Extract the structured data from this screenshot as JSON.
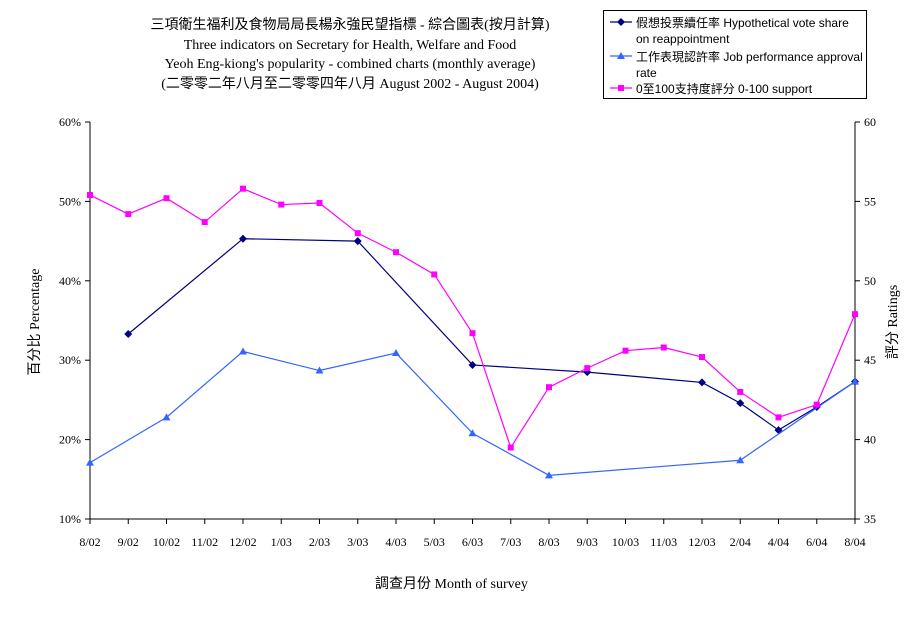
{
  "chart_data": {
    "type": "line",
    "title_lines": [
      "三項衛生福利及食物局局長楊永強民望指標 - 綜合圖表(按月計算)",
      "Three indicators on Secretary for Health, Welfare and Food",
      "Yeoh Eng-kiong's popularity - combined charts (monthly average)",
      "(二零零二年八月至二零零四年八月 August 2002 - August 2004)"
    ],
    "xlabel": "調查月份 Month of survey",
    "ylabel_left": "百分比 Percentage",
    "ylabel_right": "評分 Ratings",
    "categories": [
      "8/02",
      "9/02",
      "10/02",
      "11/02",
      "12/02",
      "1/03",
      "2/03",
      "3/03",
      "4/03",
      "5/03",
      "6/03",
      "7/03",
      "8/03",
      "9/03",
      "10/03",
      "11/03",
      "12/03",
      "2/04",
      "4/04",
      "6/04",
      "8/04"
    ],
    "y_left": {
      "min": 10,
      "max": 60,
      "step": 10,
      "tick_labels": [
        "10%",
        "20%",
        "30%",
        "40%",
        "50%",
        "60%"
      ]
    },
    "y_right": {
      "min": 35,
      "max": 60,
      "step": 5,
      "tick_labels": [
        "35",
        "40",
        "45",
        "50",
        "55",
        "60"
      ]
    },
    "series": [
      {
        "name": "假想投票續任率 Hypothetical vote share on reappointment",
        "axis": "left",
        "color": "#000080",
        "marker": "diamond",
        "values": [
          null,
          33.3,
          null,
          null,
          45.3,
          null,
          null,
          45.0,
          null,
          null,
          29.4,
          null,
          null,
          28.5,
          null,
          null,
          27.2,
          24.6,
          21.2,
          24.1,
          27.3
        ]
      },
      {
        "name": "工作表現認許率 Job performance approval rate",
        "axis": "left",
        "color": "#3366ff",
        "marker": "triangle",
        "values": [
          17.1,
          null,
          22.8,
          null,
          31.1,
          null,
          28.7,
          null,
          30.9,
          null,
          20.8,
          null,
          15.5,
          null,
          null,
          null,
          null,
          17.4,
          null,
          null,
          27.3
        ]
      },
      {
        "name": "0至100支持度評分 0-100 support",
        "axis": "right",
        "color": "#ff00ff",
        "marker": "square",
        "values": [
          55.4,
          54.2,
          55.2,
          53.7,
          55.8,
          54.8,
          54.9,
          53.0,
          51.8,
          50.4,
          46.7,
          39.5,
          43.3,
          44.5,
          45.6,
          45.8,
          45.2,
          43.0,
          41.4,
          42.2,
          47.9
        ]
      }
    ],
    "legend_position": "top-right",
    "grid": false
  }
}
